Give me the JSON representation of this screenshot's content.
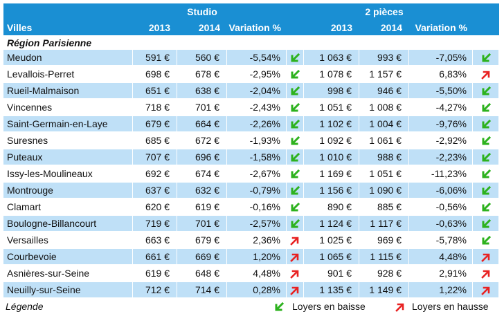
{
  "header": {
    "studio_label": "Studio",
    "deux_pieces_label": "2 pièces",
    "villes_label": "Villes",
    "col_2013": "2013",
    "col_2014": "2014",
    "col_variation": "Variation %"
  },
  "region_label": "Région Parisienne",
  "rows": [
    {
      "ville": "Meudon",
      "s2013": "591 €",
      "s2014": "560 €",
      "svar": "-5,54%",
      "sdir": "down",
      "p2013": "1 063 €",
      "p2014": "993 €",
      "pvar": "-7,05%",
      "pdir": "down"
    },
    {
      "ville": "Levallois-Perret",
      "s2013": "698 €",
      "s2014": "678 €",
      "svar": "-2,95%",
      "sdir": "down",
      "p2013": "1 078 €",
      "p2014": "1 157 €",
      "pvar": "6,83%",
      "pdir": "up"
    },
    {
      "ville": "Rueil-Malmaison",
      "s2013": "651 €",
      "s2014": "638 €",
      "svar": "-2,04%",
      "sdir": "down",
      "p2013": "998 €",
      "p2014": "946 €",
      "pvar": "-5,50%",
      "pdir": "down"
    },
    {
      "ville": "Vincennes",
      "s2013": "718 €",
      "s2014": "701 €",
      "svar": "-2,43%",
      "sdir": "down",
      "p2013": "1 051 €",
      "p2014": "1 008 €",
      "pvar": "-4,27%",
      "pdir": "down"
    },
    {
      "ville": "Saint-Germain-en-Laye",
      "s2013": "679 €",
      "s2014": "664 €",
      "svar": "-2,26%",
      "sdir": "down",
      "p2013": "1 102 €",
      "p2014": "1 004 €",
      "pvar": "-9,76%",
      "pdir": "down"
    },
    {
      "ville": "Suresnes",
      "s2013": "685 €",
      "s2014": "672 €",
      "svar": "-1,93%",
      "sdir": "down",
      "p2013": "1 092 €",
      "p2014": "1 061 €",
      "pvar": "-2,92%",
      "pdir": "down"
    },
    {
      "ville": "Puteaux",
      "s2013": "707 €",
      "s2014": "696 €",
      "svar": "-1,58%",
      "sdir": "down",
      "p2013": "1 010 €",
      "p2014": "988 €",
      "pvar": "-2,23%",
      "pdir": "down"
    },
    {
      "ville": "Issy-les-Moulineaux",
      "s2013": "692 €",
      "s2014": "674 €",
      "svar": "-2,67%",
      "sdir": "down",
      "p2013": "1 169 €",
      "p2014": "1 051 €",
      "pvar": "-11,23%",
      "pdir": "down"
    },
    {
      "ville": "Montrouge",
      "s2013": "637 €",
      "s2014": "632 €",
      "svar": "-0,79%",
      "sdir": "down",
      "p2013": "1 156 €",
      "p2014": "1 090 €",
      "pvar": "-6,06%",
      "pdir": "down"
    },
    {
      "ville": "Clamart",
      "s2013": "620 €",
      "s2014": "619 €",
      "svar": "-0,16%",
      "sdir": "down",
      "p2013": "890 €",
      "p2014": "885 €",
      "pvar": "-0,56%",
      "pdir": "down"
    },
    {
      "ville": "Boulogne-Billancourt",
      "s2013": "719 €",
      "s2014": "701 €",
      "svar": "-2,57%",
      "sdir": "down",
      "p2013": "1 124 €",
      "p2014": "1 117 €",
      "pvar": "-0,63%",
      "pdir": "down"
    },
    {
      "ville": "Versailles",
      "s2013": "663 €",
      "s2014": "679 €",
      "svar": "2,36%",
      "sdir": "up",
      "p2013": "1 025 €",
      "p2014": "969 €",
      "pvar": "-5,78%",
      "pdir": "down"
    },
    {
      "ville": "Courbevoie",
      "s2013": "661 €",
      "s2014": "669 €",
      "svar": "1,20%",
      "sdir": "up",
      "p2013": "1 065 €",
      "p2014": "1 115 €",
      "pvar": "4,48%",
      "pdir": "up"
    },
    {
      "ville": "Asnières-sur-Seine",
      "s2013": "619 €",
      "s2014": "648 €",
      "svar": "4,48%",
      "sdir": "up",
      "p2013": "901 €",
      "p2014": "928 €",
      "pvar": "2,91%",
      "pdir": "up"
    },
    {
      "ville": "Neuilly-sur-Seine",
      "s2013": "712 €",
      "s2014": "714 €",
      "svar": "0,28%",
      "sdir": "up",
      "p2013": "1 135 €",
      "p2014": "1 149 €",
      "pvar": "1,22%",
      "pdir": "up"
    }
  ],
  "legend": {
    "label": "Légende",
    "baisse": "Loyers en baisse",
    "hausse": "Loyers en hausse"
  },
  "colors": {
    "header_bg": "#1a8fd3",
    "row_shade": "#bfe0f7",
    "arrow_down": "#2db21e",
    "arrow_up": "#e82222"
  },
  "icons": {
    "down": "arrow-down-left-icon",
    "up": "arrow-up-right-icon"
  }
}
